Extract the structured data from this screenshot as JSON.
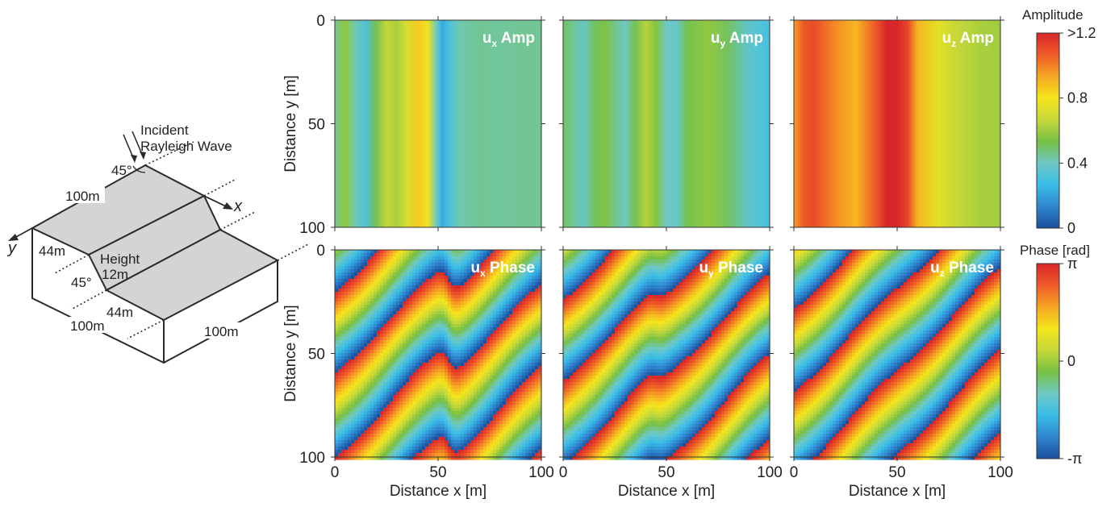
{
  "diagram": {
    "incident_label_1": "Incident",
    "incident_label_2": "Rayleigh Wave",
    "angle_top": "45°",
    "dim_top": "100m",
    "x_axis": "x",
    "y_axis": "y",
    "dim_left": "44m",
    "height_label_1": "Height",
    "height_label_2": "12m",
    "angle_slope": "45°",
    "dim_front": "44m",
    "dim_bottom_left": "100m",
    "dim_bottom_right": "100m"
  },
  "colors": {
    "colormap": [
      "#1a4e9c",
      "#2f86cf",
      "#39bde8",
      "#6fc9c4",
      "#76c043",
      "#c6d83a",
      "#f5e51b",
      "#f6a623",
      "#ef5a28",
      "#d8262a"
    ],
    "face_fill": "#d4d4d4",
    "line": "#2b2b2b",
    "title_text": "#ffffff"
  },
  "chart_data": [
    {
      "type": "heatmap",
      "quantity": "amplitude",
      "component": "x",
      "title_main": "u",
      "title_sub": "x",
      "title_suffix": " Amp",
      "profile_x": [
        0,
        5,
        10,
        15,
        20,
        25,
        30,
        35,
        40,
        45,
        50,
        52,
        55,
        60,
        70,
        80,
        90,
        100
      ],
      "profile_value": [
        0.45,
        0.58,
        0.42,
        0.32,
        0.52,
        0.66,
        0.62,
        0.72,
        0.86,
        0.78,
        0.35,
        0.22,
        0.3,
        0.42,
        0.45,
        0.44,
        0.45,
        0.45
      ],
      "xlabel": "",
      "ylabel": "Distance y [m]",
      "xlim": [
        0,
        100
      ],
      "ylim": [
        0,
        100
      ],
      "xticks": [],
      "yticks": [
        "0",
        "50",
        "100"
      ]
    },
    {
      "type": "heatmap",
      "quantity": "amplitude",
      "component": "y",
      "title_main": "u",
      "title_sub": "y",
      "title_suffix": " Amp",
      "profile_x": [
        0,
        5,
        10,
        15,
        20,
        25,
        30,
        35,
        40,
        45,
        50,
        55,
        60,
        70,
        80,
        90,
        100
      ],
      "profile_value": [
        0.5,
        0.45,
        0.38,
        0.5,
        0.55,
        0.46,
        0.4,
        0.52,
        0.64,
        0.56,
        0.4,
        0.38,
        0.52,
        0.58,
        0.5,
        0.36,
        0.3
      ],
      "xlabel": "",
      "ylabel": "",
      "xlim": [
        0,
        100
      ],
      "ylim": [
        0,
        100
      ],
      "xticks": [],
      "yticks": []
    },
    {
      "type": "heatmap",
      "quantity": "amplitude",
      "component": "z",
      "title_main": "u",
      "title_sub": "z",
      "title_suffix": " Amp",
      "profile_x": [
        0,
        5,
        10,
        20,
        30,
        40,
        45,
        50,
        55,
        60,
        70,
        80,
        90,
        100
      ],
      "profile_value": [
        0.95,
        1.08,
        1.1,
        0.98,
        0.9,
        1.08,
        1.2,
        1.22,
        1.12,
        0.9,
        0.75,
        0.66,
        0.62,
        0.6
      ],
      "xlabel": "",
      "ylabel": "",
      "xlim": [
        0,
        100
      ],
      "ylim": [
        0,
        100
      ],
      "xticks": [],
      "yticks": []
    },
    {
      "type": "heatmap",
      "quantity": "phase",
      "component": "x",
      "title_main": "u",
      "title_sub": "x",
      "title_suffix": " Phase",
      "wave_number": 0.1571,
      "phase_offset": 0.0,
      "step_x": 55,
      "step_jump": 2.6,
      "wiggle": 8,
      "xlabel": "Distance x [m]",
      "ylabel": "Distance y [m]",
      "xlim": [
        0,
        100
      ],
      "ylim": [
        0,
        100
      ],
      "xticks": [
        "0",
        "50",
        "100"
      ],
      "yticks": [
        "0",
        "50",
        "100"
      ]
    },
    {
      "type": "heatmap",
      "quantity": "phase",
      "component": "y",
      "title_main": "u",
      "title_sub": "y",
      "title_suffix": " Phase",
      "wave_number": 0.1571,
      "phase_offset": 0.6,
      "step_x": 45,
      "step_jump": 1.2,
      "wiggle": 8,
      "xlabel": "Distance x [m]",
      "ylabel": "",
      "xlim": [
        0,
        100
      ],
      "ylim": [
        0,
        100
      ],
      "xticks": [
        "0",
        "50",
        "100"
      ],
      "yticks": []
    },
    {
      "type": "heatmap",
      "quantity": "phase",
      "component": "z",
      "title_main": "u",
      "title_sub": "z",
      "title_suffix": " Phase",
      "wave_number": 0.1571,
      "phase_offset": 1.4,
      "step_x": 50,
      "step_jump": 0.0,
      "wiggle": 3,
      "xlabel": "Distance x [m]",
      "ylabel": "",
      "xlim": [
        0,
        100
      ],
      "ylim": [
        0,
        100
      ],
      "xticks": [
        "0",
        "50",
        "100"
      ],
      "yticks": []
    }
  ],
  "colorbars": {
    "amplitude": {
      "title": "Amplitude",
      "ticks": [
        ">1.2",
        "0.8",
        "0.4",
        "0"
      ],
      "range": [
        0,
        1.2
      ]
    },
    "phase": {
      "title": "Phase [rad]",
      "ticks": [
        "π",
        "0",
        "-π"
      ],
      "range": [
        -3.1416,
        3.1416
      ]
    }
  }
}
